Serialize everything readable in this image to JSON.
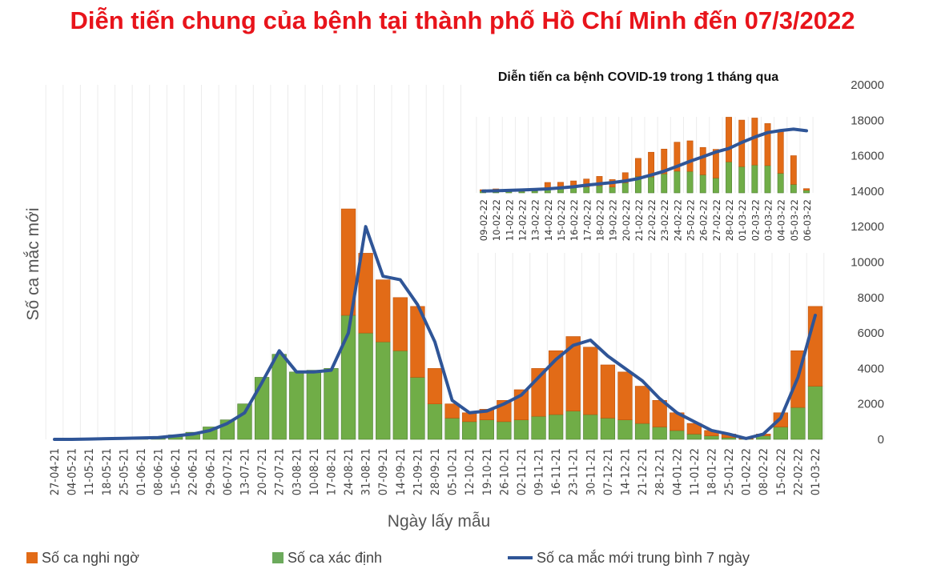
{
  "chart_data": [
    {
      "type": "bar",
      "title": "Diễn tiến chung của bệnh tại thành phố Hồ Chí Minh đến 07/3/2022",
      "xlabel": "Ngày lấy mẫu",
      "ylabel": "Số ca mắc mới",
      "ylim": [
        0,
        20000
      ],
      "yticks": [
        0,
        2000,
        4000,
        6000,
        8000,
        10000,
        12000,
        14000,
        16000,
        18000,
        20000
      ],
      "y_axis_side": "right",
      "grid": "vertical",
      "stacked": true,
      "legend_position": "bottom",
      "categories": [
        "27-04-21",
        "04-05-21",
        "11-05-21",
        "18-05-21",
        "25-05-21",
        "01-06-21",
        "08-06-21",
        "15-06-21",
        "22-06-21",
        "29-06-21",
        "06-07-21",
        "13-07-21",
        "20-07-21",
        "27-07-21",
        "03-08-21",
        "10-08-21",
        "17-08-21",
        "24-08-21",
        "31-08-21",
        "07-09-21",
        "14-09-21",
        "21-09-21",
        "28-09-21",
        "05-10-21",
        "12-10-21",
        "19-10-21",
        "26-10-21",
        "02-11-21",
        "09-11-21",
        "16-11-21",
        "23-11-21",
        "30-11-21",
        "07-12-21",
        "14-12-21",
        "21-12-21",
        "28-12-21",
        "04-01-22",
        "11-01-22",
        "18-01-22",
        "25-01-22",
        "01-02-22",
        "08-02-22",
        "15-02-22",
        "22-02-22",
        "01-03-22"
      ],
      "series": [
        {
          "name": "Số ca xác định",
          "type": "bar",
          "color": "#70ad47",
          "values": [
            0,
            0,
            20,
            40,
            80,
            100,
            150,
            250,
            400,
            700,
            1100,
            2000,
            3500,
            4800,
            3800,
            3900,
            4000,
            7000,
            6000,
            5500,
            5000,
            3500,
            2000,
            1200,
            1000,
            1100,
            1000,
            1100,
            1300,
            1400,
            1600,
            1400,
            1200,
            1100,
            900,
            700,
            500,
            300,
            200,
            100,
            20,
            200,
            700,
            1800,
            3000
          ]
        },
        {
          "name": "Số ca nghi ngờ",
          "type": "bar",
          "color": "#e26b17",
          "values": [
            0,
            0,
            0,
            0,
            0,
            0,
            0,
            0,
            0,
            0,
            0,
            0,
            0,
            0,
            0,
            0,
            0,
            6000,
            4500,
            3500,
            3000,
            4000,
            2000,
            800,
            500,
            600,
            1200,
            1700,
            2700,
            3600,
            4200,
            3800,
            3000,
            2700,
            2100,
            1500,
            1000,
            600,
            300,
            200,
            30,
            100,
            800,
            3200,
            4500
          ]
        },
        {
          "name": "Số ca mắc mới trung bình 7 ngày",
          "type": "line",
          "color": "#2f5597",
          "values": [
            0,
            0,
            20,
            40,
            60,
            80,
            100,
            200,
            300,
            500,
            900,
            1500,
            3200,
            5000,
            3800,
            3800,
            3900,
            6000,
            12000,
            9200,
            9000,
            7600,
            5500,
            2200,
            1500,
            1600,
            2000,
            2500,
            3500,
            4500,
            5300,
            5600,
            4700,
            4000,
            3300,
            2300,
            1500,
            1000,
            500,
            300,
            50,
            300,
            1200,
            3500,
            7000
          ]
        }
      ]
    },
    {
      "type": "bar",
      "title": "Diễn tiến ca bệnh COVID-19 trong 1 tháng qua",
      "stacked": true,
      "grid": "vertical",
      "categories": [
        "09-02-22",
        "10-02-22",
        "11-02-22",
        "12-02-22",
        "13-02-22",
        "14-02-22",
        "15-02-22",
        "16-02-22",
        "17-02-22",
        "18-02-22",
        "19-02-22",
        "20-02-22",
        "21-02-22",
        "22-02-22",
        "23-02-22",
        "24-02-22",
        "25-02-22",
        "26-02-22",
        "27-02-22",
        "28-02-22",
        "01-03-22",
        "02-03-22",
        "03-03-22",
        "04-03-22",
        "05-03-22",
        "06-03-22"
      ],
      "series": [
        {
          "name": "Số ca xác định",
          "type": "bar",
          "color": "#70ad47",
          "values": [
            200,
            200,
            150,
            180,
            200,
            410,
            440,
            590,
            650,
            790,
            650,
            1110,
            1820,
            1760,
            2110,
            2400,
            2380,
            2000,
            1640,
            3430,
            2900,
            3080,
            3020,
            2170,
            940,
            290
          ]
        },
        {
          "name": "Số ca nghi ngờ",
          "type": "bar",
          "color": "#e26b17",
          "values": [
            150,
            240,
            0,
            20,
            0,
            740,
            730,
            730,
            880,
            1030,
            820,
            1120,
            1990,
            2730,
            2730,
            3200,
            3370,
            3020,
            3170,
            4930,
            5140,
            5190,
            4640,
            4630,
            3170,
            180
          ]
        },
        {
          "name": "Số ca mắc mới trung bình 7 ngày",
          "type": "line",
          "color": "#2f5597",
          "values": [
            200,
            230,
            270,
            320,
            380,
            440,
            560,
            670,
            850,
            1000,
            1140,
            1320,
            1580,
            1970,
            2400,
            2930,
            3490,
            3990,
            4520,
            4900,
            5570,
            6160,
            6660,
            6890,
            7040,
            6860
          ]
        }
      ]
    }
  ],
  "legend": {
    "suspected": "Số ca nghi ngờ",
    "confirmed": "Số ca xác định",
    "average": "Số ca mắc mới trung bình 7 ngày"
  }
}
